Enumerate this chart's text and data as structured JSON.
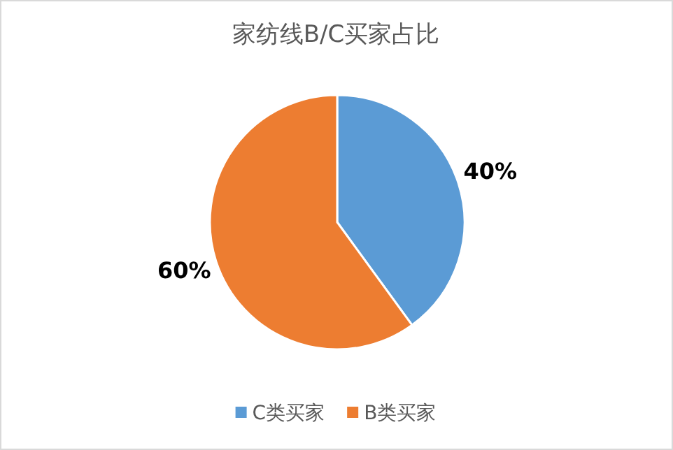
{
  "chart_data": {
    "type": "pie",
    "title": "家纺线B/C买家占比",
    "categories": [
      "C类买家",
      "B类买家"
    ],
    "values": [
      40,
      60
    ],
    "colors": [
      "#5b9bd5",
      "#ed7d31"
    ],
    "value_labels": [
      "40%",
      "60%"
    ],
    "legend": "bottom"
  }
}
